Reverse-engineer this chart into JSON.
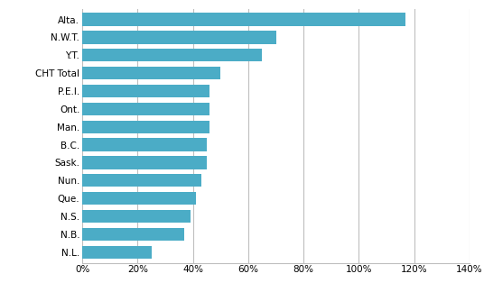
{
  "categories": [
    "Alta.",
    "N.W.T.",
    "Y.T.",
    "CHT Total",
    "P.E.I.",
    "Ont.",
    "Man.",
    "B.C.",
    "Sask.",
    "Nun.",
    "Que.",
    "N.S.",
    "N.B.",
    "N.L."
  ],
  "values": [
    1.17,
    0.7,
    0.65,
    0.5,
    0.46,
    0.46,
    0.46,
    0.45,
    0.45,
    0.43,
    0.41,
    0.39,
    0.37,
    0.25
  ],
  "bar_color": "#4bacc6",
  "xlim": [
    0,
    1.4
  ],
  "xtick_vals": [
    0.0,
    0.2,
    0.4,
    0.6,
    0.8,
    1.0,
    1.2,
    1.4
  ],
  "background_color": "#ffffff",
  "grid_color": "#bfbfbf",
  "bar_height": 0.72,
  "figsize": [
    5.36,
    3.24
  ],
  "dpi": 100,
  "label_fontsize": 7.5,
  "tick_fontsize": 7.5
}
